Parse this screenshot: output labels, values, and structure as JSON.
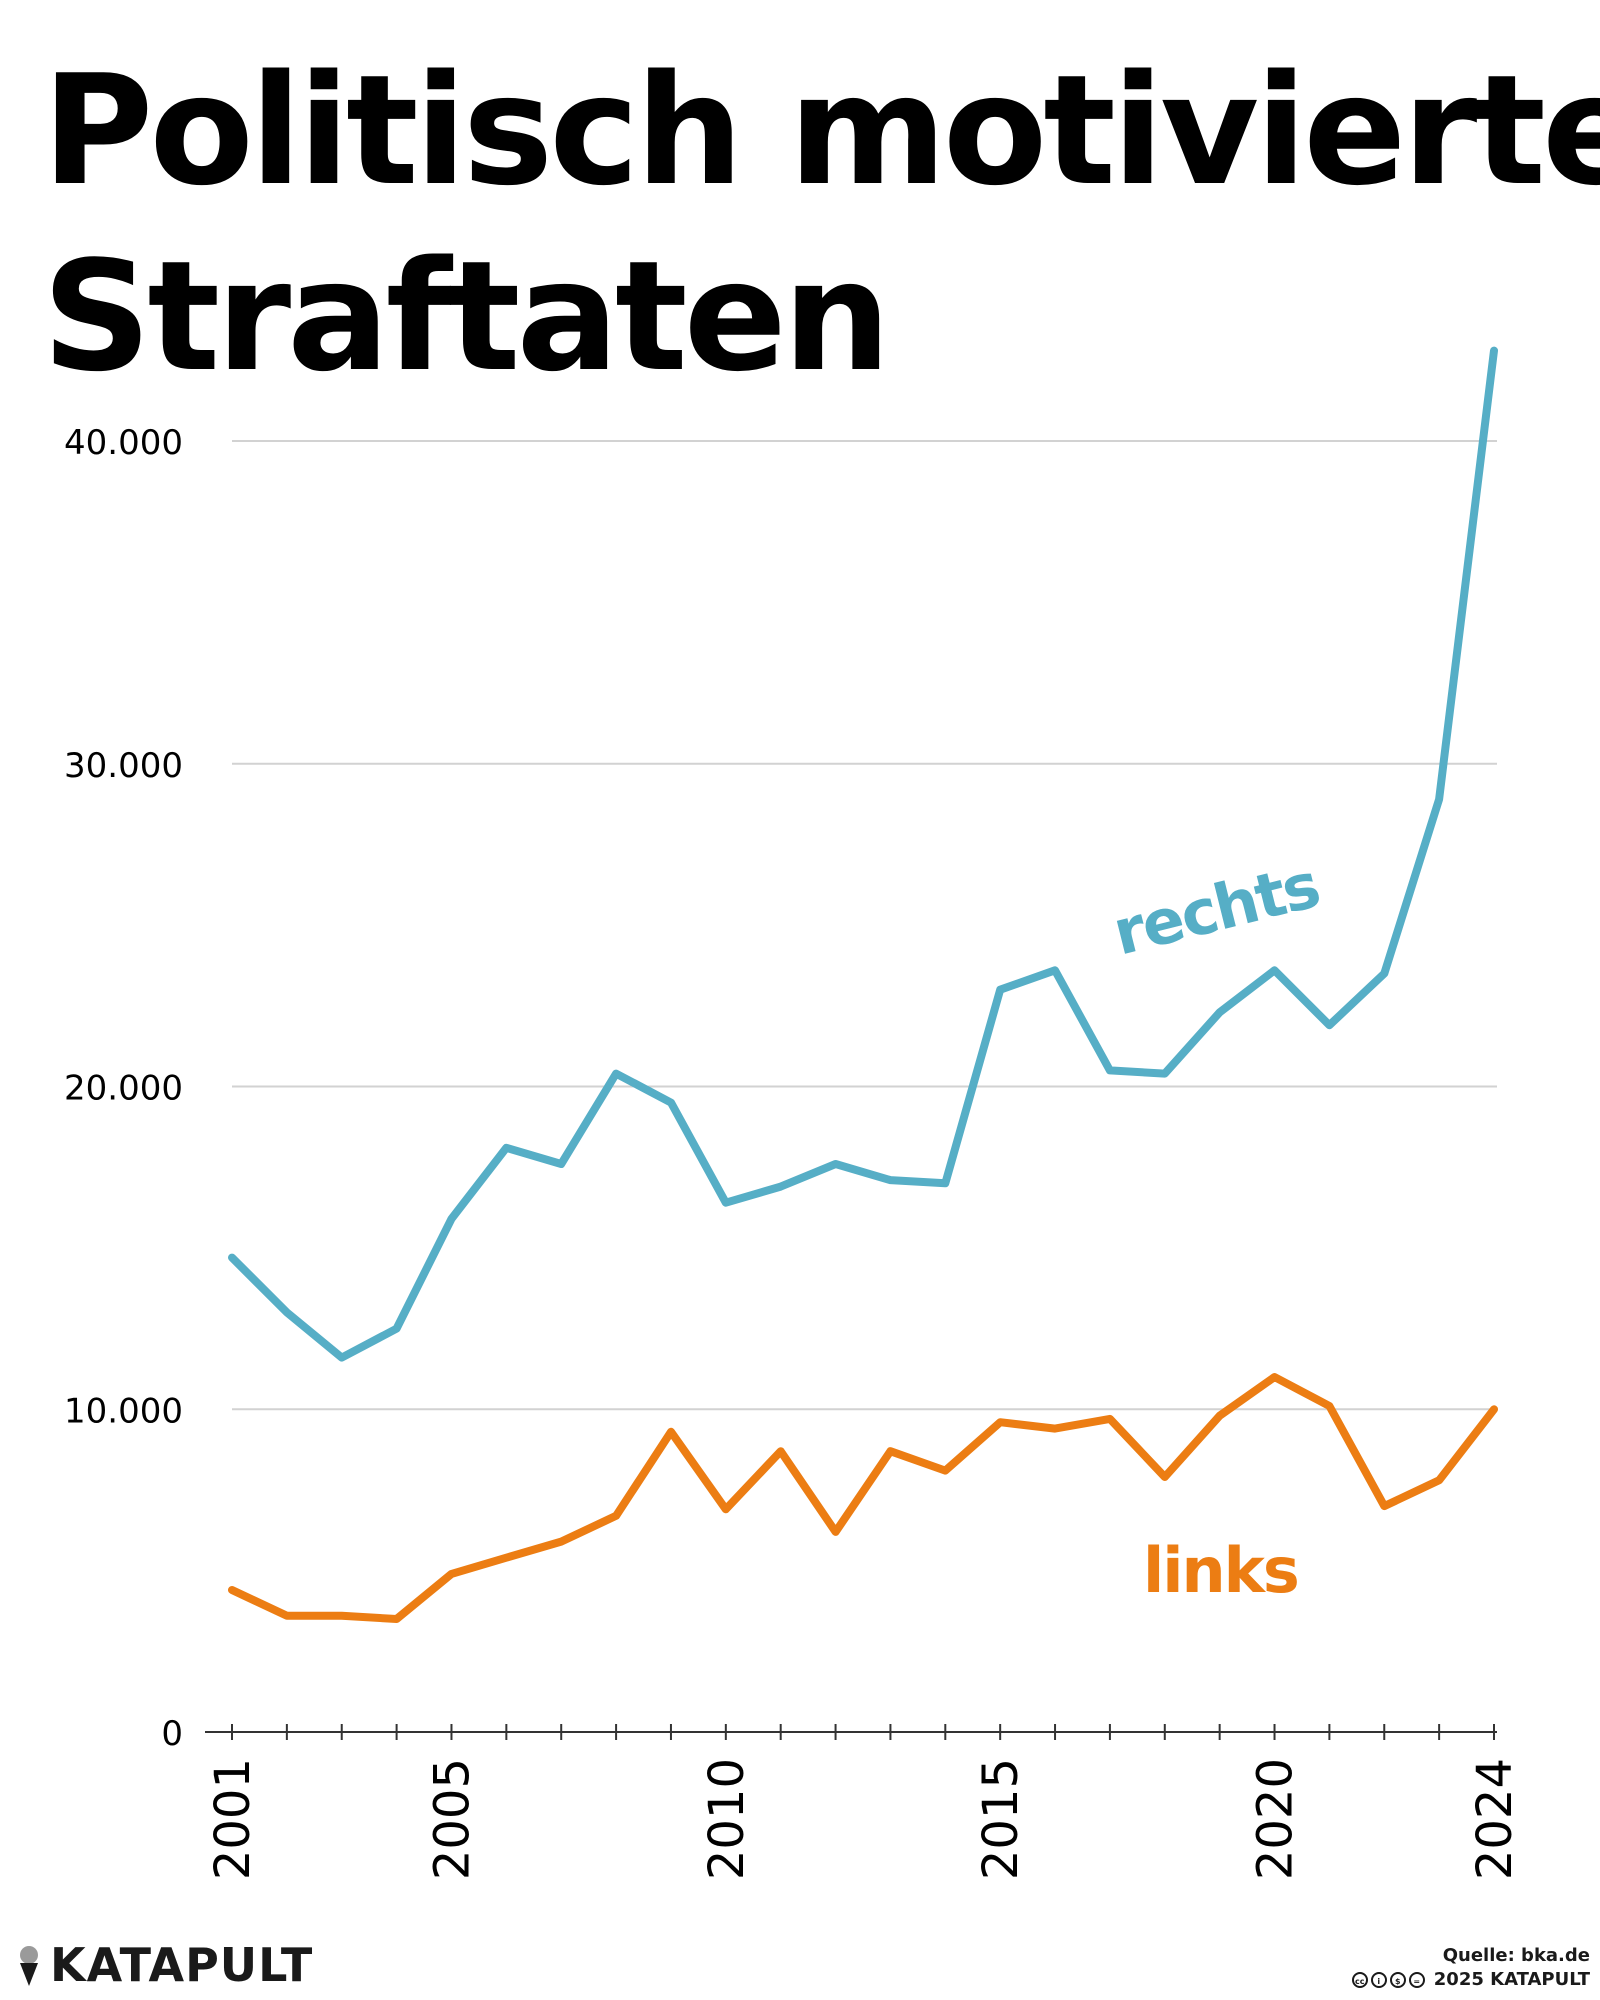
{
  "title": {
    "line1": "Politisch motivierte",
    "line2": "Straftaten"
  },
  "chart_data": {
    "type": "line",
    "title": "Politisch motivierte Straftaten",
    "xlabel": "",
    "ylabel": "",
    "x": [
      2001,
      2002,
      2003,
      2004,
      2005,
      2006,
      2007,
      2008,
      2009,
      2010,
      2011,
      2012,
      2013,
      2014,
      2015,
      2016,
      2017,
      2018,
      2019,
      2020,
      2021,
      2022,
      2023,
      2024
    ],
    "x_tick_values": [
      2001,
      2005,
      2010,
      2015,
      2020,
      2024
    ],
    "x_tick_labels": [
      "2001",
      "2005",
      "2010",
      "2015",
      "2020",
      "2024"
    ],
    "ylim": [
      0,
      42000
    ],
    "y_tick_values": [
      0,
      10000,
      20000,
      30000,
      40000
    ],
    "y_tick_labels": [
      "0",
      "10.000",
      "20.000",
      "30.000",
      "40.000"
    ],
    "grid": true,
    "series": [
      {
        "name": "rechts",
        "color": "#56aec6",
        "values": [
          14700,
          13000,
          11600,
          12500,
          15900,
          18100,
          17600,
          20400,
          19500,
          16400,
          16900,
          17600,
          17100,
          17000,
          23000,
          23600,
          20500,
          20400,
          22300,
          23600,
          21900,
          23500,
          28900,
          42800
        ]
      },
      {
        "name": "links",
        "color": "#ec7d13",
        "values": [
          4400,
          3600,
          3600,
          3500,
          4900,
          5400,
          5900,
          6700,
          9300,
          6900,
          8700,
          6200,
          8700,
          8100,
          9600,
          9400,
          9700,
          7900,
          9800,
          11000,
          10100,
          7000,
          7800,
          10000
        ]
      }
    ]
  },
  "footer": {
    "brand": "KATAPULT",
    "source": "Quelle: bka.de",
    "copyright": "2025 KATAPULT",
    "license_icons": [
      "cc-icon",
      "by-icon",
      "nc-icon",
      "nd-icon"
    ]
  }
}
